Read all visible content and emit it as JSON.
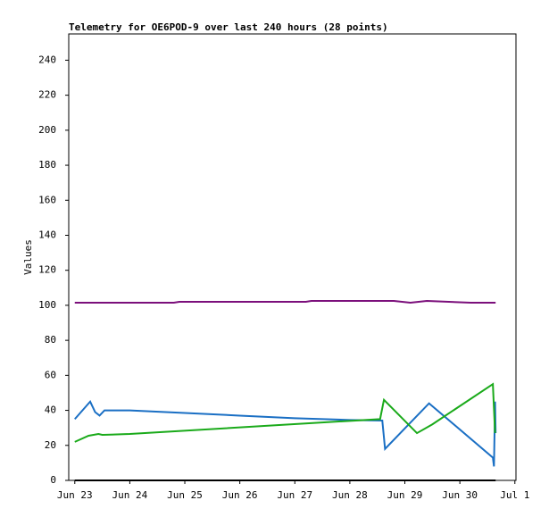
{
  "chart_data": {
    "type": "line",
    "title": "Telemetry for OE6POD-9 over last 240 hours (28 points)",
    "y_label": "Values",
    "xlim": [
      -0.11,
      8.02
    ],
    "ylim": [
      0,
      255
    ],
    "xticks": [
      {
        "value": 0,
        "label": "Jun 23"
      },
      {
        "value": 1,
        "label": "Jun 24"
      },
      {
        "value": 2,
        "label": "Jun 25"
      },
      {
        "value": 3,
        "label": "Jun 26"
      },
      {
        "value": 4,
        "label": "Jun 27"
      },
      {
        "value": 5,
        "label": "Jun 28"
      },
      {
        "value": 6,
        "label": "Jun 29"
      },
      {
        "value": 7,
        "label": "Jun 30"
      },
      {
        "value": 8,
        "label": "Jul 1"
      }
    ],
    "yticks": [
      0,
      20,
      40,
      60,
      80,
      100,
      120,
      140,
      160,
      180,
      200,
      220,
      240
    ],
    "series": [
      {
        "color": "#000000",
        "x": [
          0,
          7.65
        ],
        "values": [
          0,
          0
        ]
      },
      {
        "color": "#7b0f7b",
        "x": [
          0,
          1.8,
          1.9,
          4.2,
          4.3,
          5.8,
          6.1,
          6.4,
          6.8,
          7.2,
          7.65
        ],
        "values": [
          101.5,
          101.5,
          102,
          102,
          102.5,
          102.5,
          101.5,
          102.5,
          102,
          101.5,
          101.5
        ]
      },
      {
        "color": "#1a6fc4",
        "x": [
          0,
          0.28,
          0.37,
          0.45,
          0.54,
          1,
          2,
          3,
          4,
          5,
          5.59,
          5.64,
          6.44,
          7.6,
          7.62,
          7.64,
          7.65
        ],
        "values": [
          35,
          45,
          39,
          37,
          40,
          40,
          38.5,
          37,
          35.5,
          34.5,
          34.2,
          18,
          44,
          13,
          8,
          45,
          27
        ]
      },
      {
        "color": "#1aaa1a",
        "x": [
          0,
          0.25,
          0.43,
          0.5,
          1,
          5,
          5.55,
          5.62,
          6.22,
          6.5,
          7.6,
          7.64
        ],
        "values": [
          22,
          25.5,
          26.5,
          26,
          26.5,
          34,
          35,
          46,
          27,
          32,
          55,
          27
        ]
      }
    ]
  }
}
